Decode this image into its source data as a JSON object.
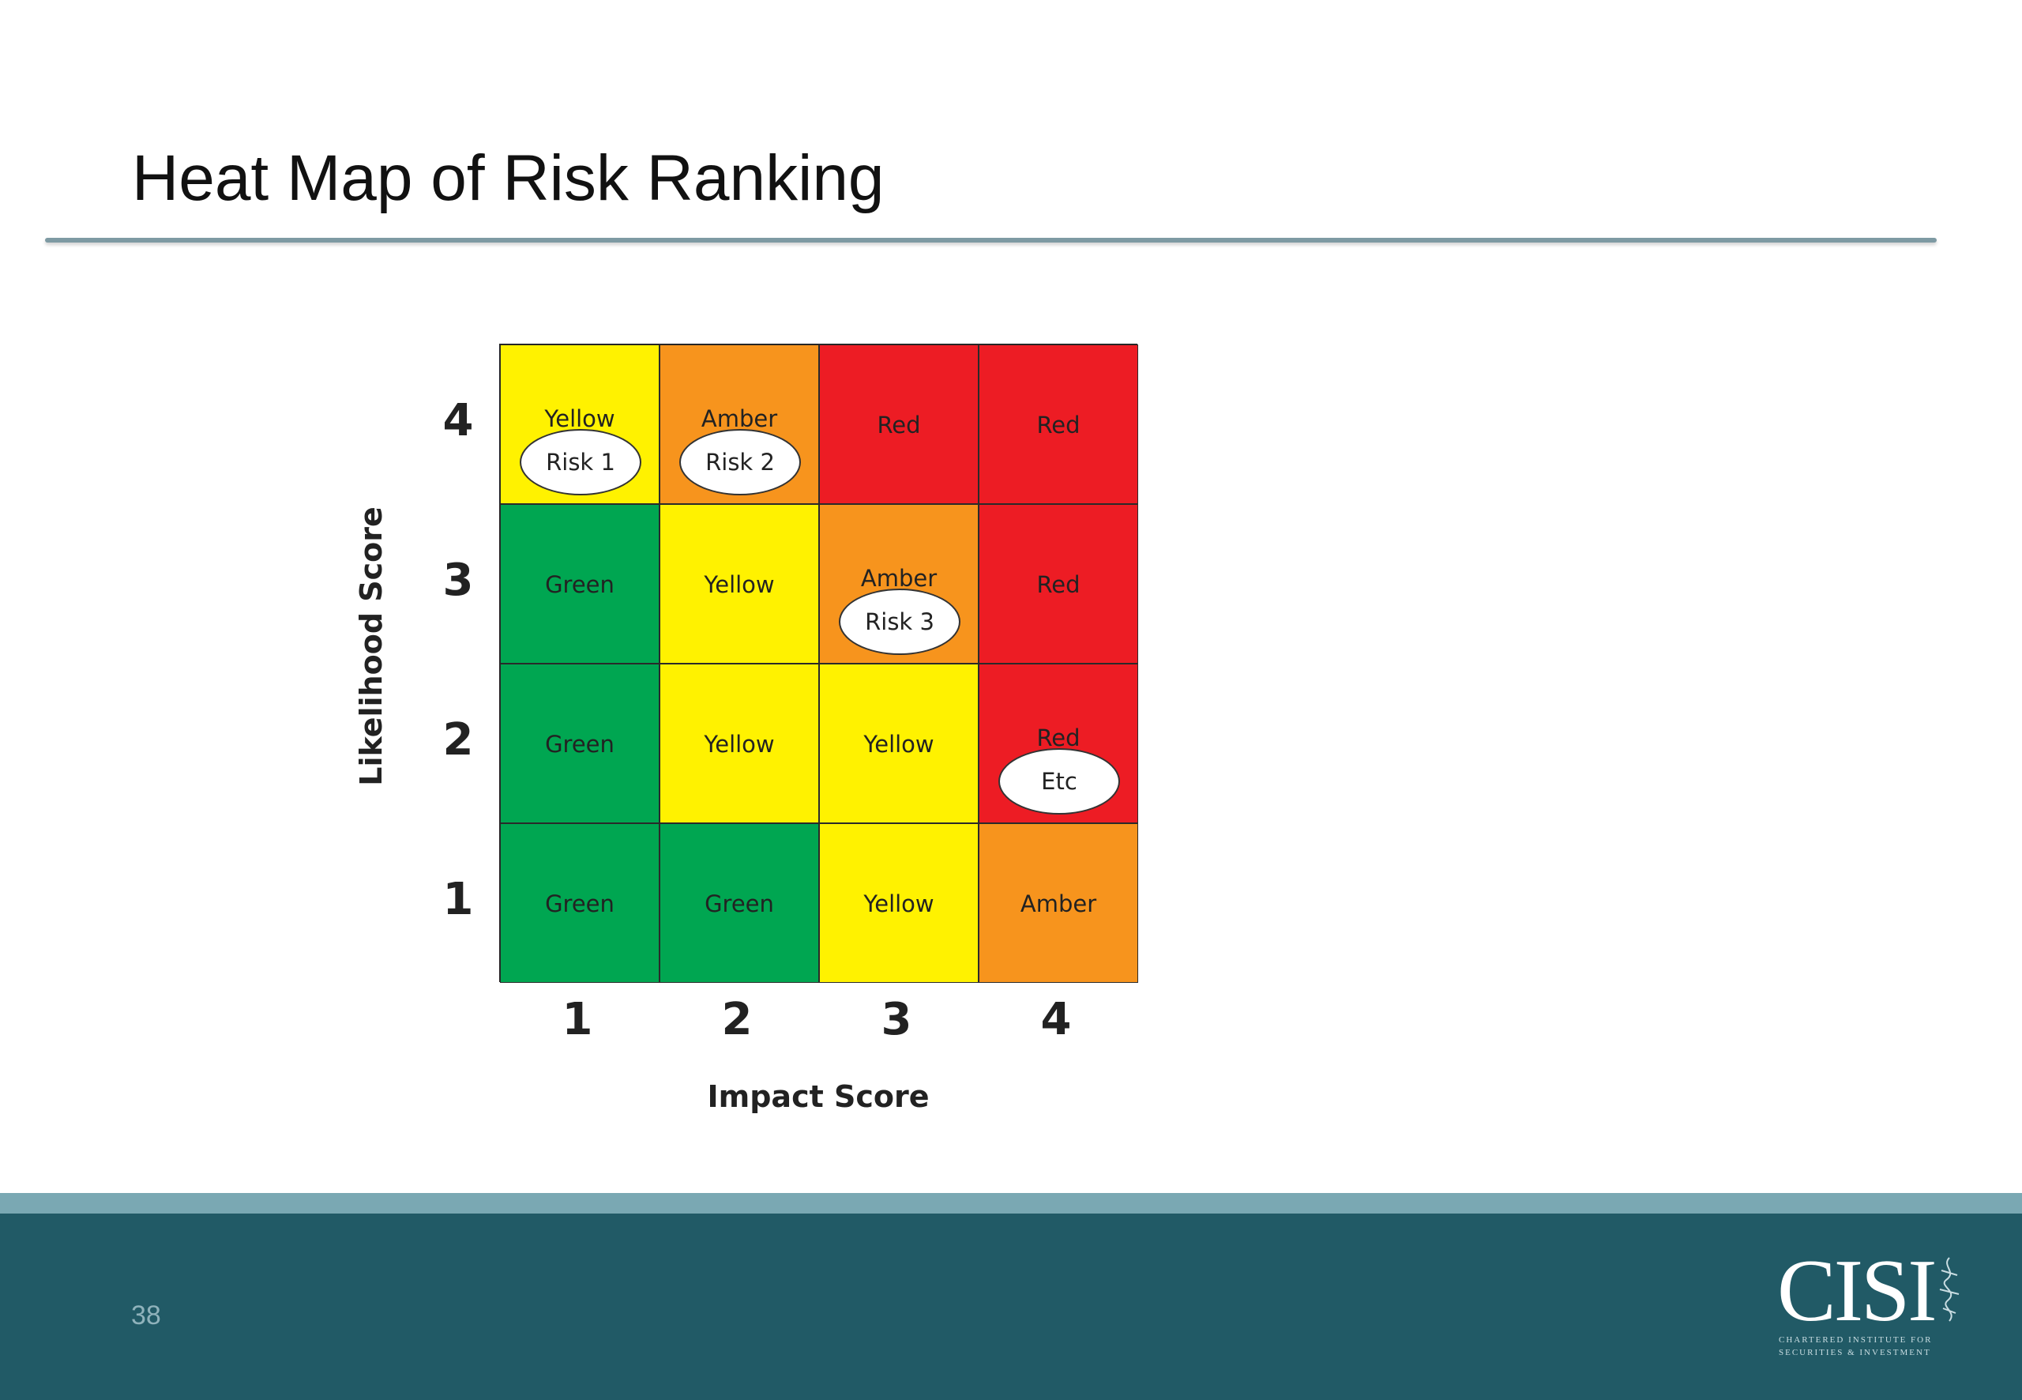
{
  "slide": {
    "title": "Heat Map of Risk Ranking",
    "page_number": "38"
  },
  "logo": {
    "text": "CISI",
    "line1": "CHARTERED INSTITUTE FOR",
    "line2": "SECURITIES & INVESTMENT",
    "icon": "crest-icon"
  },
  "colors": {
    "Green": "#00a651",
    "Yellow": "#fff200",
    "Amber": "#f7941d",
    "Red": "#ed1c24",
    "title_rule": "#7e9aa3",
    "footer": "#215a66",
    "footer_accent": "#7aa8b3"
  },
  "chart_data": {
    "type": "heatmap",
    "xlabel": "Impact Score",
    "ylabel": "Likelihood Score",
    "x_ticks": [
      "1",
      "2",
      "3",
      "4"
    ],
    "y_ticks": [
      "4",
      "3",
      "2",
      "1"
    ],
    "cells": [
      [
        "Yellow",
        "Amber",
        "Red",
        "Red"
      ],
      [
        "Green",
        "Yellow",
        "Amber",
        "Red"
      ],
      [
        "Green",
        "Yellow",
        "Yellow",
        "Red"
      ],
      [
        "Green",
        "Green",
        "Yellow",
        "Amber"
      ]
    ],
    "risks": [
      {
        "label": "Risk 1",
        "impact": 1,
        "likelihood": 4
      },
      {
        "label": "Risk 2",
        "impact": 2,
        "likelihood": 4
      },
      {
        "label": "Risk 3",
        "impact": 3,
        "likelihood": 3
      },
      {
        "label": "Etc",
        "impact": 4,
        "likelihood": 2
      }
    ]
  }
}
